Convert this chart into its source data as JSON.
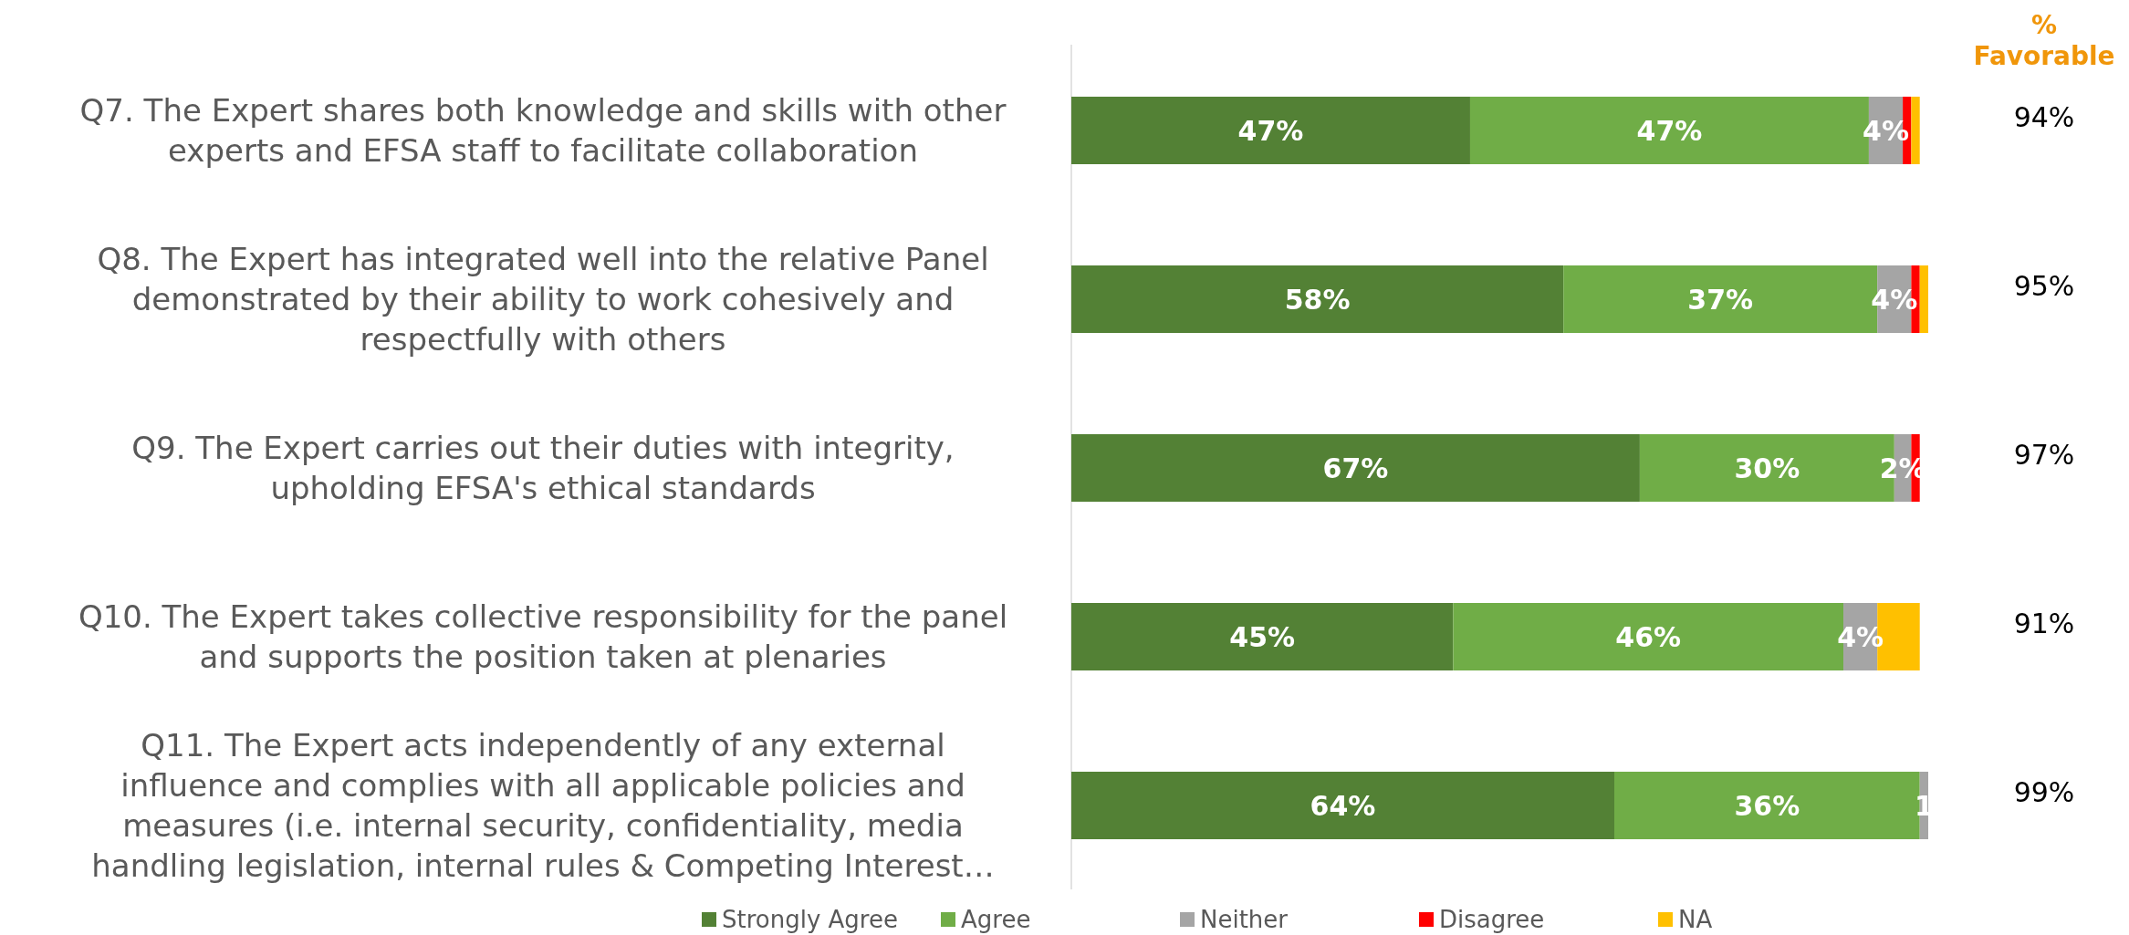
{
  "chart_data": [
    {
      "type": "bar",
      "orientation": "horizontal",
      "stacked": true,
      "categories": [
        "Q7. The Expert shares both knowledge and skills with other\nexperts and EFSA staff to facilitate collaboration",
        "Q8. The Expert has integrated well into the relative Panel\ndemonstrated by their ability to work cohesively and\nrespectfully with others",
        "Q9. The Expert carries out their duties with integrity,\nupholding EFSA's ethical standards",
        "Q10. The Expert takes collective responsibility for the panel\nand supports the position taken at plenaries",
        "Q11. The Expert acts independently of any external\ninfluence and complies with all applicable policies and\nmeasures (i.e. internal security, confidentiality, media\nhandling legislation, internal rules & Competing Interest…"
      ],
      "series": [
        {
          "name": "Strongly Agree",
          "color": "#538135",
          "values": [
            47,
            58,
            67,
            45,
            64
          ],
          "value_labels": [
            "47%",
            "58%",
            "67%",
            "45%",
            "64%"
          ]
        },
        {
          "name": "Agree",
          "color": "#70ad47",
          "values": [
            47,
            37,
            30,
            46,
            36
          ],
          "value_labels": [
            "47%",
            "37%",
            "30%",
            "46%",
            "36%"
          ]
        },
        {
          "name": "Neither",
          "color": "#a5a5a5",
          "values": [
            4,
            4,
            2,
            4,
            1
          ],
          "value_labels": [
            "4%",
            "4%",
            "2%",
            "4%",
            "1"
          ]
        },
        {
          "name": "Disagree",
          "color": "#ff0000",
          "values": [
            1,
            1,
            1,
            0,
            0
          ],
          "value_labels": [
            null,
            null,
            null,
            null,
            null
          ]
        },
        {
          "name": "NA",
          "color": "#ffc000",
          "values": [
            1,
            1,
            0,
            5,
            0
          ],
          "value_labels": [
            null,
            null,
            null,
            null,
            null
          ]
        }
      ],
      "legend": "bottom"
    },
    {
      "type": "other",
      "title": "%\nFavorable",
      "annotations": [
        "94%",
        "95%",
        "97%",
        "91%",
        "99%"
      ]
    }
  ]
}
